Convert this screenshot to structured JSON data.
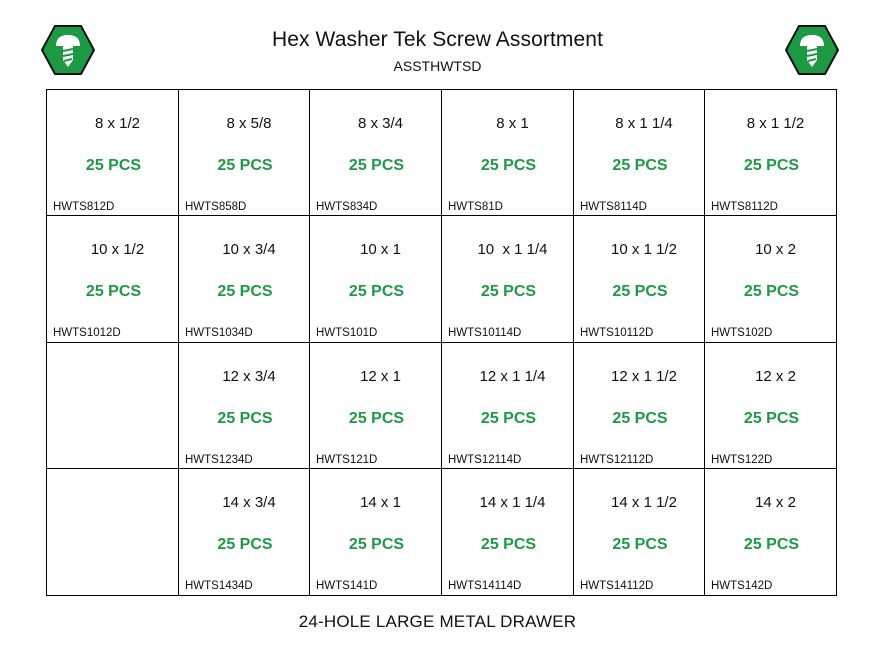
{
  "header": {
    "title": "Hex Washer Tek Screw Assortment",
    "subtitle": "ASSTHWTSD"
  },
  "logo": {
    "icon": "screw-hex-icon",
    "color": "#1e9a46"
  },
  "grid": {
    "rows": [
      [
        {
          "size": "8 x 1/2",
          "qty": "25 PCS",
          "sku": "HWTS812D"
        },
        {
          "size": "8 x 5/8",
          "qty": "25 PCS",
          "sku": "HWTS858D"
        },
        {
          "size": "8 x 3/4",
          "qty": "25 PCS",
          "sku": "HWTS834D"
        },
        {
          "size": "8 x 1",
          "qty": "25 PCS",
          "sku": "HWTS81D"
        },
        {
          "size": "8 x 1 1/4",
          "qty": "25 PCS",
          "sku": "HWTS8114D"
        },
        {
          "size": "8 x 1 1/2",
          "qty": "25 PCS",
          "sku": "HWTS8112D"
        }
      ],
      [
        {
          "size": "10 x 1/2",
          "qty": "25 PCS",
          "sku": "HWTS1012D"
        },
        {
          "size": "10 x 3/4",
          "qty": "25 PCS",
          "sku": "HWTS1034D"
        },
        {
          "size": "10 x 1",
          "qty": "25 PCS",
          "sku": "HWTS101D"
        },
        {
          "size": "10  x 1 1/4",
          "qty": "25 PCS",
          "sku": "HWTS10114D"
        },
        {
          "size": "10 x 1 1/2",
          "qty": "25 PCS",
          "sku": "HWTS10112D"
        },
        {
          "size": "10 x 2",
          "qty": "25 PCS",
          "sku": "HWTS102D"
        }
      ],
      [
        {
          "size": "",
          "qty": "",
          "sku": ""
        },
        {
          "size": "12 x 3/4",
          "qty": "25 PCS",
          "sku": "HWTS1234D"
        },
        {
          "size": "12 x 1",
          "qty": "25 PCS",
          "sku": "HWTS121D"
        },
        {
          "size": "12 x 1 1/4",
          "qty": "25 PCS",
          "sku": "HWTS12114D"
        },
        {
          "size": "12 x 1 1/2",
          "qty": "25 PCS",
          "sku": "HWTS12112D"
        },
        {
          "size": "12 x 2",
          "qty": "25 PCS",
          "sku": "HWTS122D"
        }
      ],
      [
        {
          "size": "",
          "qty": "",
          "sku": ""
        },
        {
          "size": "14 x 3/4",
          "qty": "25 PCS",
          "sku": "HWTS1434D"
        },
        {
          "size": "14 x 1",
          "qty": "25 PCS",
          "sku": "HWTS141D"
        },
        {
          "size": "14 x 1 1/4",
          "qty": "25 PCS",
          "sku": "HWTS14114D"
        },
        {
          "size": "14 x 1 1/2",
          "qty": "25 PCS",
          "sku": "HWTS14112D"
        },
        {
          "size": "14 x 2",
          "qty": "25 PCS",
          "sku": "HWTS142D"
        }
      ]
    ]
  },
  "footer": {
    "label": "24-HOLE LARGE METAL DRAWER"
  }
}
